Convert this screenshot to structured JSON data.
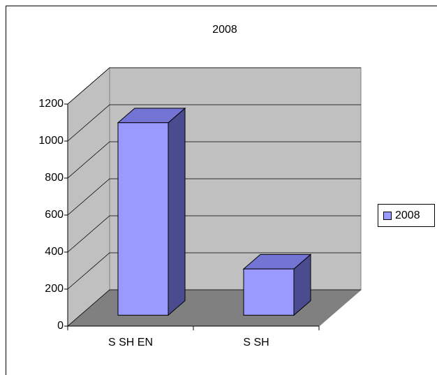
{
  "chart_data": {
    "type": "bar3d",
    "title": "2008",
    "categories": [
      "S SH EN",
      "S SH"
    ],
    "series": [
      {
        "name": "2008",
        "color": "#9999ff",
        "values": [
          1040,
          250
        ]
      }
    ],
    "ylim": [
      0,
      1200
    ],
    "yticks": [
      0,
      200,
      400,
      600,
      800,
      1000,
      1200
    ],
    "grid": true,
    "legend": "right"
  }
}
